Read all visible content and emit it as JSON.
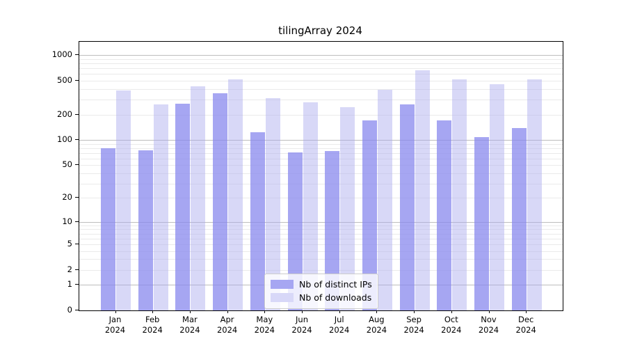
{
  "title": "tilingArray 2024",
  "chart_data": {
    "type": "bar",
    "title": "tilingArray 2024",
    "categories": [
      "Jan 2024",
      "Feb 2024",
      "Mar 2024",
      "Apr 2024",
      "May 2024",
      "Jun 2024",
      "Jul 2024",
      "Aug 2024",
      "Sep 2024",
      "Oct 2024",
      "Nov 2024",
      "Dec 2024"
    ],
    "series": [
      {
        "name": "Nb of distinct IPs",
        "color": "#a6a6f2",
        "fill_rgba": "rgba(136,136,238,0.75)",
        "values": [
          79,
          76,
          270,
          356,
          124,
          71,
          74,
          170,
          265,
          170,
          108,
          138
        ]
      },
      {
        "name": "Nb of downloads",
        "color": "#d8d8f8",
        "fill_rgba": "rgba(170,170,238,0.46)",
        "values": [
          383,
          262,
          432,
          517,
          312,
          277,
          243,
          390,
          660,
          520,
          460,
          525
        ]
      }
    ],
    "xlabel": "",
    "ylabel": "",
    "y_scale": "log1p",
    "y_ticks": [
      0,
      1,
      2,
      5,
      10,
      20,
      50,
      100,
      200,
      500,
      1000
    ],
    "ylim": [
      0,
      1430
    ],
    "grid": "horizontal major and log-minor gridlines",
    "legend_position": "inside lower-center"
  },
  "axis": {
    "months": [
      "Jan",
      "Feb",
      "Mar",
      "Apr",
      "May",
      "Jun",
      "Jul",
      "Aug",
      "Sep",
      "Oct",
      "Nov",
      "Dec"
    ],
    "year_line": "2024",
    "y_tick_labels": [
      "0",
      "1",
      "2",
      "5",
      "10",
      "20",
      "50",
      "100",
      "200",
      "500",
      "1000"
    ]
  },
  "legend": {
    "items": [
      {
        "label": "Nb of distinct IPs"
      },
      {
        "label": "Nb of downloads"
      }
    ]
  },
  "colors": {
    "bar_dark": "#a6a6f2",
    "bar_light": "#d8d8f8",
    "grid_major": "#bdbdbd",
    "grid_minor": "#eaeaea",
    "spine": "#000000",
    "legend_border": "#cccccc"
  }
}
